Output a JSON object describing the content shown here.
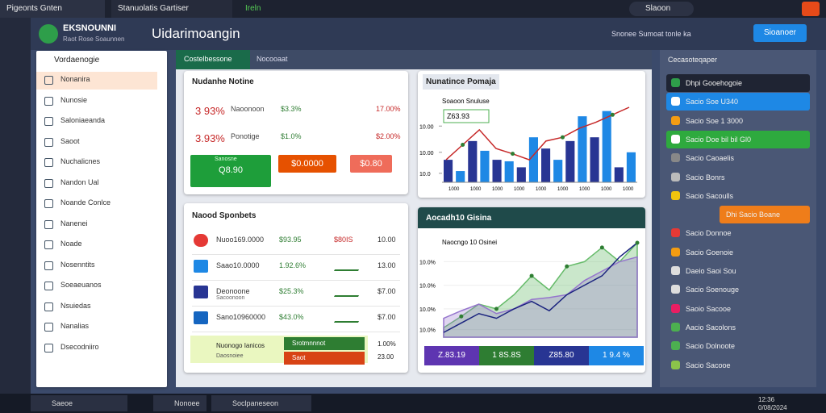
{
  "browser": {
    "tabs": [
      "Pigeonts Gnten",
      "Stanuolatis Gartiser",
      "Ireln"
    ],
    "search": "Slaoon"
  },
  "header": {
    "logo": "EKSNOUNNI",
    "logo_sub": "Raot Rose Soaunnen",
    "title": "Uidarimoangin",
    "status": "Snonee Sumoat tonle ka",
    "button": "Sioanoer"
  },
  "sidebar": {
    "title": "Vordaenogie",
    "items": [
      "Nonanira",
      "Nunosie",
      "Saloniaeanda",
      "Saoot",
      "Nuchalicnes",
      "Nandon Ual",
      "Noande Conlce",
      "Nanenei",
      "Noade",
      "Nosenntits",
      "Soeaeuanos",
      "Nsuiedas",
      "Nanalias",
      "Dsecodniiro"
    ]
  },
  "tabs": [
    "Costelbessone",
    "Nocooaat"
  ],
  "summary": {
    "title": "Nudanhe Notine",
    "rows": [
      [
        "3 93%",
        "Naoonoon",
        "$3.3%",
        "17.00%"
      ],
      [
        "3.93%",
        "Ponotige",
        "$1.0%",
        "$2.00%"
      ]
    ],
    "tiles": [
      "Q8.90",
      "$0.0000",
      "$0.80"
    ],
    "tile_sub": "Sanosne"
  },
  "chart1": {
    "title": "Nunatince Pomaja",
    "legend": "Soaoon Snuluse",
    "badge": "Z63.93",
    "ylim": [
      0,
      100
    ],
    "yticks": [
      {
        "value": 75,
        "label": "10.00"
      },
      {
        "value": 40,
        "label": "10.00"
      },
      {
        "value": 12,
        "label": "10.0"
      }
    ],
    "bars": [
      30,
      15,
      55,
      42,
      30,
      28,
      20,
      60,
      45,
      30,
      55,
      88,
      60,
      95,
      20,
      40
    ],
    "line": [
      30,
      50,
      70,
      45,
      38,
      30,
      55,
      60,
      72,
      80,
      90,
      100
    ],
    "xlabels": [
      "1000",
      "1000",
      "1000",
      "1000",
      "1000",
      "1000",
      "1000",
      "1000",
      "1000"
    ]
  },
  "sponbets": {
    "title": "Naood Sponbets",
    "rows": [
      [
        "Nuoo169.0000",
        "$93.95",
        "$80IS",
        "10.00"
      ],
      [
        "Saao10.0000",
        "1.92.6%",
        "",
        "13.00"
      ],
      [
        "Deonoone",
        "$25.3%",
        "",
        "$7.00"
      ],
      [
        "Sano10960000",
        "$43.0%",
        "",
        "$7.00"
      ]
    ],
    "row3_sub": "Sacoonoon",
    "footer": "Nuonogo Ianicos",
    "footer_sub": "Daosnoiee",
    "button": "Srotmnnnot",
    "button2": "Saot",
    "footer_rates": [
      "1.00%",
      "23.00"
    ]
  },
  "chart2": {
    "title": "Aocadh10 Gisina",
    "legend": "Naocngo 10 Osinei",
    "ylim": [
      0,
      100
    ],
    "yticks": [
      {
        "value": 80,
        "label": "10.0%"
      },
      {
        "value": 55,
        "label": "10.0%"
      },
      {
        "value": 30,
        "label": "10.0%"
      },
      {
        "value": 8,
        "label": "10.0%"
      }
    ],
    "green": [
      10,
      22,
      35,
      30,
      45,
      65,
      50,
      75,
      80,
      95,
      80,
      100
    ],
    "purple": [
      20,
      28,
      35,
      25,
      30,
      40,
      42,
      45,
      60,
      70,
      80,
      85
    ],
    "line": [
      5,
      15,
      25,
      20,
      30,
      38,
      28,
      45,
      55,
      65,
      85,
      100
    ],
    "stats": [
      "Z.83.19",
      "1 8S.8S",
      "Z85.80",
      "1 9.4 %"
    ]
  },
  "rightpanel": {
    "title": "Cecasoteqaper",
    "items": [
      "Dhpi Gooehogoie",
      "Sacio Soe U340",
      "Sacio Soe 1 3000",
      "Sacio Doe bil bil Gl0",
      "Sacio Caoaelis",
      "Sacio Bonrs",
      "Sacio Sacoulls",
      "Dhi Sacio Boane",
      "Sacio Donnoe",
      "Sacio Goenoie",
      "Daeio Saoi Sou",
      "Sacio Soenouge",
      "Saoio Sacooe",
      "Aacio Sacolons",
      "Sacio Dolnoote",
      "Sacio Sacooe"
    ]
  },
  "taskbar": {
    "apps": [
      "Saeoe",
      "Nonoee",
      "Soclpaneseon"
    ],
    "time": "12:36",
    "date": "0/08/2024"
  }
}
